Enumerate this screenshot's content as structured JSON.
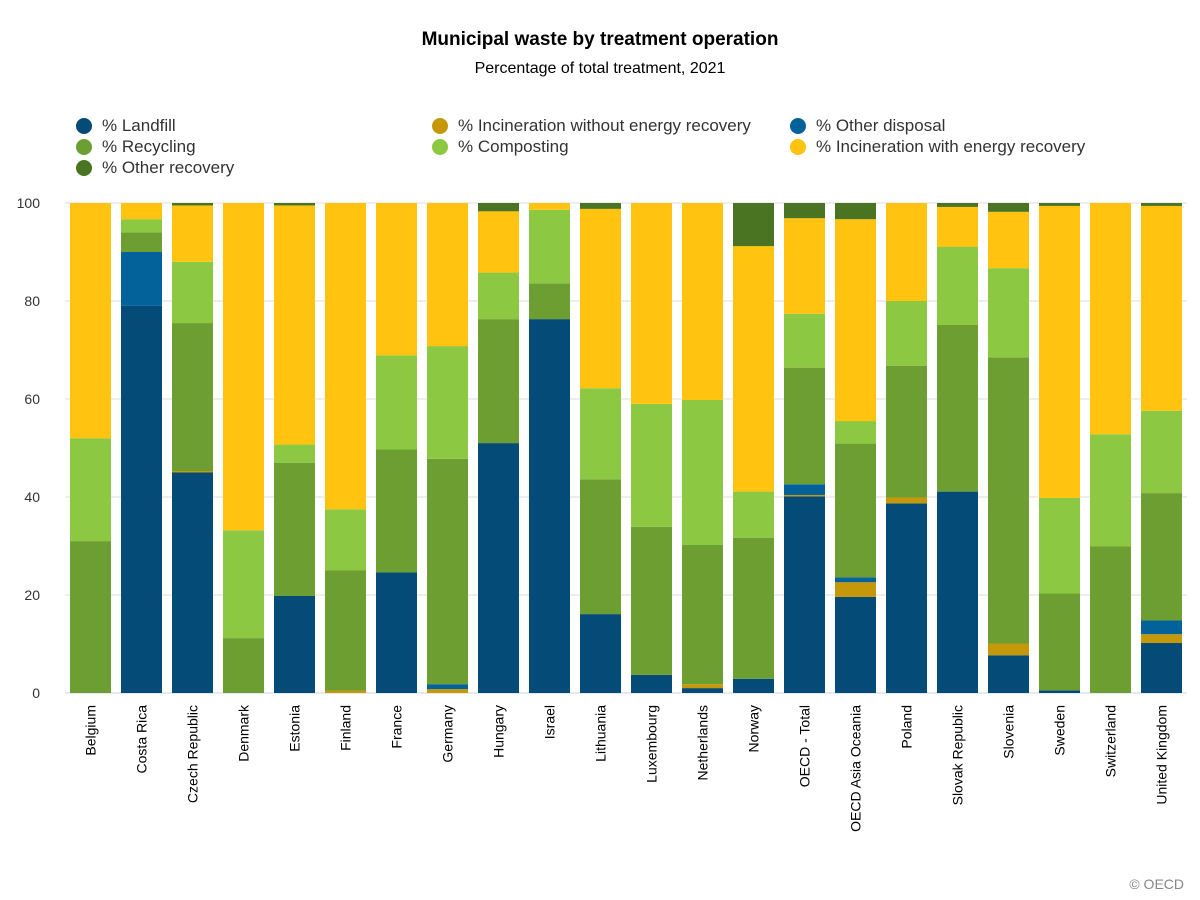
{
  "chart_data": {
    "type": "bar",
    "stacked": true,
    "title": "Municipal waste by treatment operation",
    "subtitle": "Percentage of total treatment, 2021",
    "ylim": [
      0,
      100
    ],
    "yticks": [
      0,
      20,
      40,
      60,
      80,
      100
    ],
    "grid": true,
    "legend_position": "top",
    "categories": [
      "Belgium",
      "Costa Rica",
      "Czech Republic",
      "Denmark",
      "Estonia",
      "Finland",
      "France",
      "Germany",
      "Hungary",
      "Israel",
      "Lithuania",
      "Luxembourg",
      "Netherlands",
      "Norway",
      "OECD - Total",
      "OECD Asia Oceania",
      "Poland",
      "Slovak Republic",
      "Slovenia",
      "Sweden",
      "Switzerland",
      "United Kingdom"
    ],
    "series": [
      {
        "name": "% Landfill",
        "color": "#044B78",
        "values": [
          0,
          79,
          45,
          0,
          19.8,
          0,
          24.6,
          0,
          51,
          76.3,
          16.1,
          3.7,
          1,
          2.9,
          40.1,
          19.6,
          38.7,
          41.1,
          7.7,
          0.5,
          0,
          10.2
        ]
      },
      {
        "name": "% Incineration without energy recovery",
        "color": "#C5980A",
        "values": [
          0,
          0,
          0.3,
          0,
          0,
          0.5,
          0,
          0.8,
          0,
          0,
          0,
          0,
          0.8,
          0,
          0.3,
          3,
          1.2,
          0,
          2.4,
          0,
          0,
          1.8
        ]
      },
      {
        "name": "% Other disposal",
        "color": "#04629A",
        "values": [
          0,
          11,
          0,
          0,
          0,
          0,
          0,
          1,
          0,
          0,
          0,
          0,
          0,
          0,
          2.2,
          1,
          0,
          0,
          0,
          0,
          0,
          2.8
        ]
      },
      {
        "name": "% Recycling",
        "color": "#6C9E31",
        "values": [
          31,
          4,
          30.2,
          11.2,
          27.2,
          24.5,
          25.1,
          46,
          25.3,
          7.3,
          27.5,
          30.2,
          28.4,
          28.8,
          23.8,
          27.3,
          26.9,
          34,
          58.4,
          19.8,
          29.9,
          26
        ]
      },
      {
        "name": "% Composting",
        "color": "#8DC843",
        "values": [
          21,
          2.7,
          12.5,
          22,
          3.7,
          12.5,
          19.2,
          23,
          9.5,
          15,
          18.6,
          25.1,
          29.6,
          9.4,
          11,
          4.6,
          13.2,
          16,
          18.2,
          19.5,
          22.9,
          16.8
        ]
      },
      {
        "name": "% Incineration with energy recovery",
        "color": "#FFC310",
        "values": [
          48,
          3.3,
          11.5,
          66.8,
          48.8,
          62.5,
          31.1,
          29.2,
          12.5,
          1.4,
          36.6,
          41,
          40.2,
          50.1,
          19.5,
          41.2,
          20,
          8.1,
          11.5,
          59.6,
          47.2,
          41.8
        ]
      },
      {
        "name": "% Other recovery",
        "color": "#4A7421",
        "values": [
          0,
          0,
          0.5,
          0,
          0.5,
          0,
          0,
          0,
          1.7,
          0,
          1.2,
          0,
          0,
          8.8,
          3.1,
          3.3,
          0,
          0.8,
          1.8,
          0.6,
          0,
          0.6
        ]
      }
    ]
  },
  "credit": "© OECD"
}
